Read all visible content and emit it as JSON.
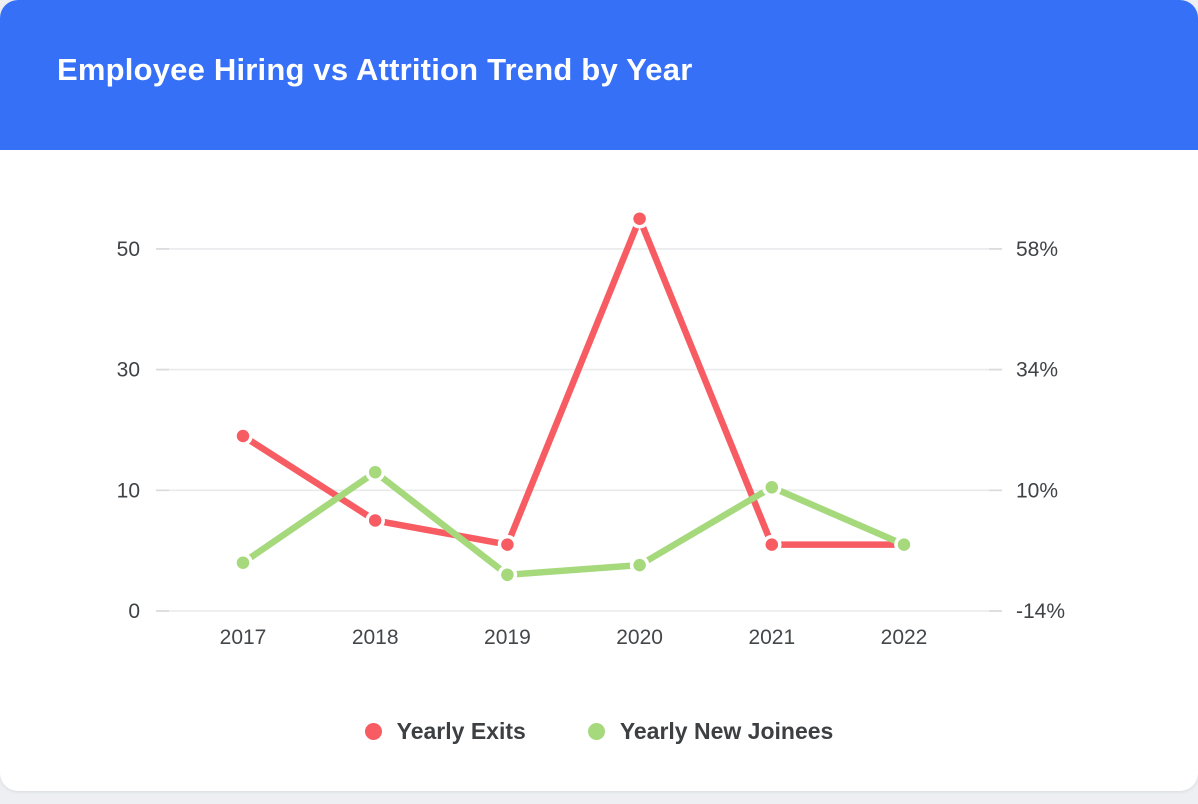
{
  "page": {
    "background": "#EDEFF2",
    "card_background": "#FFFFFF"
  },
  "header": {
    "title": "Employee Hiring vs Attrition Trend by Year",
    "background": "#3570F7",
    "text_color": "#FFFFFF"
  },
  "chart_data": {
    "type": "line",
    "title": "Employee Hiring vs Attrition Trend by Year",
    "categories": [
      "2017",
      "2018",
      "2019",
      "2020",
      "2021",
      "2022"
    ],
    "series": [
      {
        "name": "Yearly Exits",
        "color": "#F85C63",
        "values": [
          19,
          7.5,
          5.5,
          55,
          5.5,
          5.5
        ]
      },
      {
        "name": "Yearly New Joinees",
        "color": "#A5D97C",
        "values": [
          4,
          13,
          3,
          3.8,
          10.5,
          5.5
        ]
      }
    ],
    "left_axis": {
      "tick_labels": [
        "0",
        "10",
        "30",
        "50"
      ],
      "tick_values": [
        0,
        10,
        30,
        50
      ]
    },
    "right_axis": {
      "tick_labels": [
        "-14%",
        "10%",
        "34%",
        "58%"
      ]
    },
    "grid": true,
    "legend_position": "bottom",
    "colors": {
      "gridline": "#E9EAEB",
      "tick_stub": "#D9DADB",
      "axis_label": "#3F4346",
      "legend_label": "#3C4043"
    }
  }
}
